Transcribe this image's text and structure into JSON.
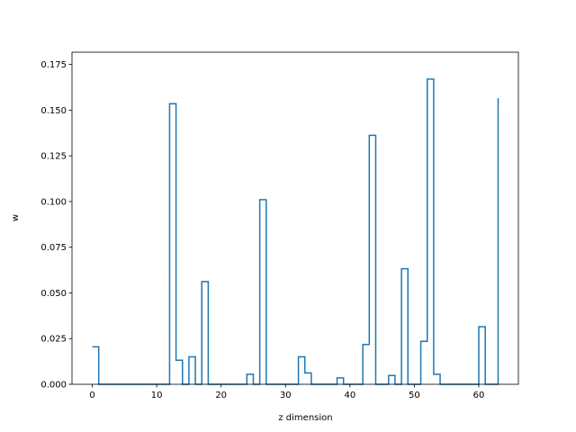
{
  "chart_data": {
    "type": "line",
    "drawstyle": "steps-post",
    "xlabel": "z dimension",
    "ylabel": "w",
    "xlim": [
      -3.15,
      66.15
    ],
    "ylim": [
      0,
      0.1817
    ],
    "xticks": [
      0,
      10,
      20,
      30,
      40,
      50,
      60
    ],
    "yticks": [
      0.0,
      0.025,
      0.05,
      0.075,
      0.1,
      0.125,
      0.15,
      0.175
    ],
    "ytick_labels": [
      "0.000",
      "0.025",
      "0.050",
      "0.075",
      "0.100",
      "0.125",
      "0.150",
      "0.175"
    ],
    "grid": false,
    "line_color": "#1f77b4",
    "series": [
      {
        "x": [
          0,
          1,
          2,
          3,
          4,
          5,
          6,
          7,
          8,
          9,
          10,
          11,
          12,
          13,
          14,
          15,
          16,
          17,
          18,
          19,
          20,
          21,
          22,
          23,
          24,
          25,
          26,
          27,
          28,
          29,
          30,
          31,
          32,
          33,
          34,
          35,
          36,
          37,
          38,
          39,
          40,
          41,
          42,
          43,
          44,
          45,
          46,
          47,
          48,
          49,
          50,
          51,
          52,
          53,
          54,
          55,
          56,
          57,
          58,
          59,
          60,
          61,
          62,
          63
        ],
        "values": [
          0.0205,
          0,
          0,
          0,
          0,
          0,
          0,
          0,
          0,
          0,
          0,
          0,
          0.1535,
          0.0132,
          0,
          0.015,
          0,
          0.0562,
          0,
          0,
          0,
          0,
          0,
          0,
          0.0055,
          0,
          0.101,
          0,
          0,
          0,
          0,
          0,
          0.015,
          0.0062,
          0,
          0,
          0,
          0,
          0.0035,
          0,
          0,
          0,
          0.0218,
          0.1362,
          0,
          0,
          0.0048,
          0,
          0.0632,
          0,
          0,
          0.0235,
          0.167,
          0.0055,
          0,
          0,
          0,
          0,
          0,
          0,
          0.0315,
          0,
          0,
          0.1565
        ]
      }
    ]
  }
}
